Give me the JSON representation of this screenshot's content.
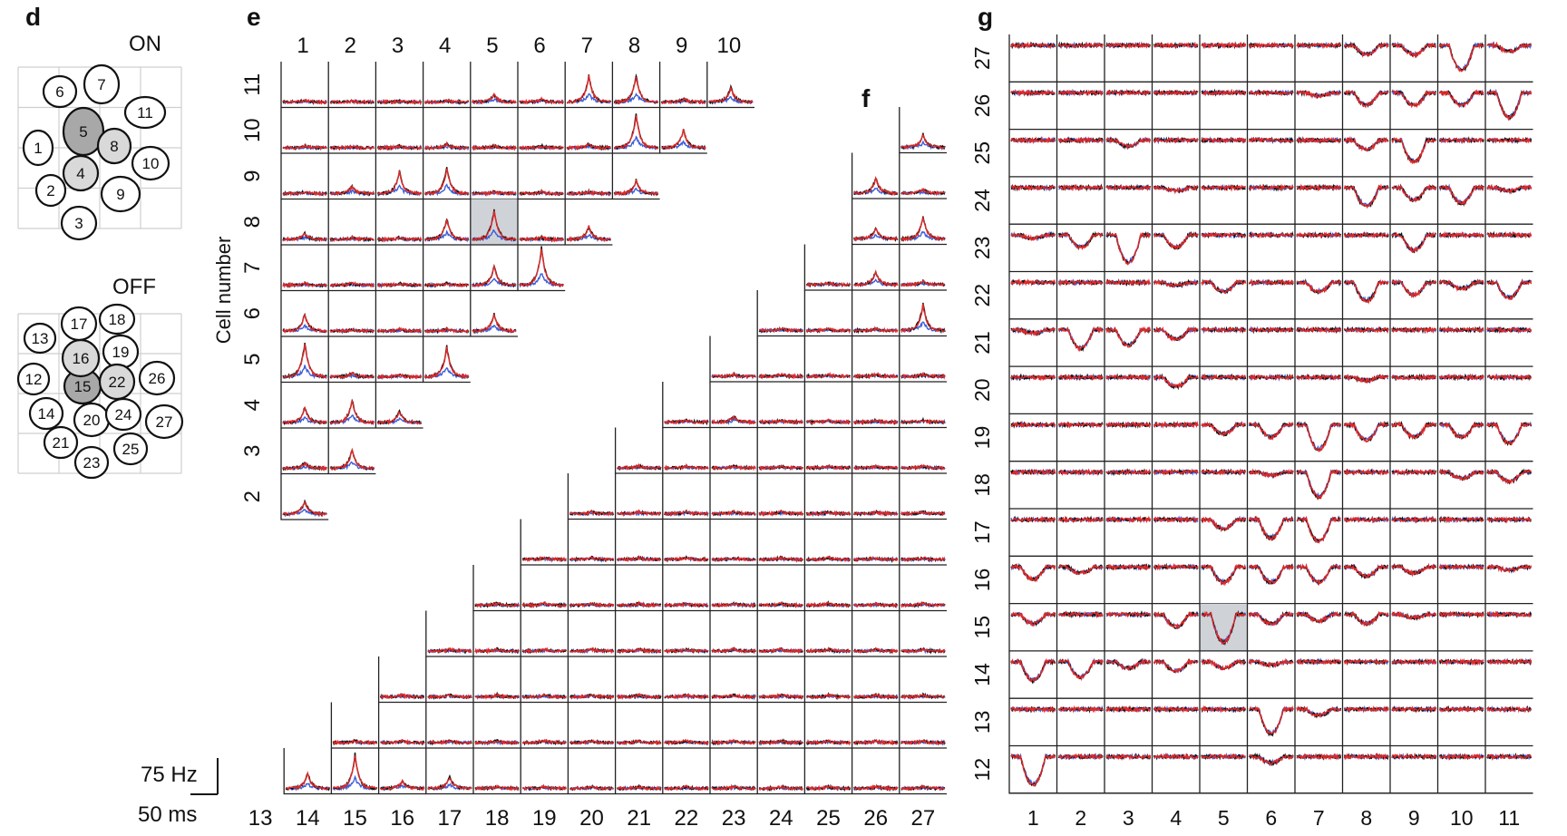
{
  "panels": {
    "d": "d",
    "e": "e",
    "f": "f",
    "g": "g"
  },
  "mosaic": {
    "on_label": "ON",
    "off_label": "OFF",
    "on_cells": [
      {
        "id": "1",
        "shade": "none"
      },
      {
        "id": "2",
        "shade": "none"
      },
      {
        "id": "3",
        "shade": "none"
      },
      {
        "id": "4",
        "shade": "light"
      },
      {
        "id": "5",
        "shade": "dark"
      },
      {
        "id": "6",
        "shade": "none"
      },
      {
        "id": "7",
        "shade": "none"
      },
      {
        "id": "8",
        "shade": "light"
      },
      {
        "id": "9",
        "shade": "none"
      },
      {
        "id": "10",
        "shade": "none"
      },
      {
        "id": "11",
        "shade": "none"
      }
    ],
    "off_cells": [
      {
        "id": "12",
        "shade": "none"
      },
      {
        "id": "13",
        "shade": "none"
      },
      {
        "id": "14",
        "shade": "none"
      },
      {
        "id": "15",
        "shade": "dark"
      },
      {
        "id": "16",
        "shade": "light"
      },
      {
        "id": "17",
        "shade": "none"
      },
      {
        "id": "18",
        "shade": "none"
      },
      {
        "id": "19",
        "shade": "none"
      },
      {
        "id": "20",
        "shade": "none"
      },
      {
        "id": "21",
        "shade": "none"
      },
      {
        "id": "22",
        "shade": "light"
      },
      {
        "id": "23",
        "shade": "none"
      },
      {
        "id": "24",
        "shade": "none"
      },
      {
        "id": "25",
        "shade": "none"
      },
      {
        "id": "26",
        "shade": "none"
      },
      {
        "id": "27",
        "shade": "none"
      }
    ]
  },
  "chart_data": [
    {
      "type": "heatmap",
      "panel": "e",
      "description_kind": "cross-correlogram grid, ON-ON pairs",
      "ylabel": "Cell number",
      "col_labels": [
        "1",
        "2",
        "3",
        "4",
        "5",
        "6",
        "7",
        "8",
        "9",
        "10"
      ],
      "row_labels": [
        "11",
        "10",
        "9",
        "8",
        "7",
        "6",
        "5",
        "4",
        "3",
        "2"
      ],
      "highlighted_pair": [
        "8",
        "5"
      ],
      "peak_amplitudes_rows": [
        [
          0.05,
          0.02,
          0.02,
          0.03,
          0.2,
          0.08,
          0.7,
          0.7,
          0.08,
          0.4
        ],
        [
          0.05,
          0.03,
          0.05,
          0.1,
          0.05,
          0.05,
          0.1,
          0.9,
          0.5
        ],
        [
          0.05,
          0.2,
          0.6,
          0.7,
          0.05,
          0.05,
          0.05,
          0.35
        ],
        [
          0.15,
          0.05,
          0.05,
          0.55,
          0.8,
          0.05,
          0.35
        ],
        [
          0.05,
          0.05,
          0.05,
          0.05,
          0.5,
          1.0
        ],
        [
          0.45,
          0.05,
          0.05,
          0.05,
          0.45
        ],
        [
          0.9,
          0.1,
          0.05,
          0.8
        ],
        [
          0.4,
          0.6,
          0.3
        ],
        [
          0.15,
          0.5
        ],
        [
          0.35
        ]
      ]
    },
    {
      "type": "heatmap",
      "panel": "f",
      "description_kind": "cross-correlogram grid, OFF-OFF pairs",
      "col_labels": [
        "13",
        "14",
        "15",
        "16",
        "17",
        "18",
        "19",
        "20",
        "21",
        "22",
        "23",
        "24",
        "25",
        "26",
        "27"
      ],
      "highlighted_pair": [
        "15",
        "16"
      ],
      "scale_bar_y": "75 Hz",
      "scale_bar_x": "50 ms",
      "peak_amplitudes_rows": [
        [
          0.35
        ],
        [
          0.4,
          0.1
        ],
        [
          0.3,
          0.6
        ],
        [
          0.05,
          0.35,
          0.1
        ],
        [
          0.05,
          0.05,
          0.05,
          0.7
        ],
        [
          0.05,
          0.05,
          0.05,
          0.05,
          0.05
        ],
        [
          0.05,
          0.15,
          0.05,
          0.05,
          0.05,
          0.05
        ],
        [
          0.05,
          0.05,
          0.05,
          0.05,
          0.05,
          0.05,
          0.05
        ],
        [
          0.05,
          0.05,
          0.05,
          0.05,
          0.05,
          0.05,
          0.05,
          0.05
        ],
        [
          0.05,
          0.05,
          0.05,
          0.05,
          0.05,
          0.05,
          0.05,
          0.05,
          0.05
        ],
        [
          0.05,
          0.05,
          0.05,
          0.05,
          0.05,
          0.05,
          0.05,
          0.05,
          0.05,
          0.05
        ],
        [
          0.05,
          0.05,
          0.05,
          0.05,
          0.05,
          0.05,
          0.05,
          0.05,
          0.05,
          0.05,
          0.05
        ],
        [
          0.05,
          0.05,
          0.05,
          0.05,
          0.05,
          0.05,
          0.05,
          0.05,
          0.05,
          0.05,
          0.05,
          0.05
        ],
        [
          0.05,
          0.05,
          0.05,
          0.05,
          0.05,
          0.05,
          0.05,
          0.05,
          0.05,
          0.05,
          0.05,
          0.05,
          0.05
        ],
        [
          0.4,
          0.9,
          0.2,
          0.3,
          0.05,
          0.05,
          0.05,
          0.05,
          0.05,
          0.05,
          0.05,
          0.05,
          0.05,
          0.05
        ]
      ]
    },
    {
      "type": "heatmap",
      "panel": "g",
      "description_kind": "cross-correlogram grid, ON-OFF pairs",
      "col_labels": [
        "1",
        "2",
        "3",
        "4",
        "5",
        "6",
        "7",
        "8",
        "9",
        "10",
        "11"
      ],
      "row_labels": [
        "27",
        "26",
        "25",
        "24",
        "23",
        "22",
        "21",
        "20",
        "19",
        "18",
        "17",
        "16",
        "15",
        "14",
        "13",
        "12"
      ],
      "highlighted_pair": [
        "15",
        "5"
      ],
      "trough_depths_rows": [
        [
          0,
          0,
          0,
          0,
          0,
          0,
          0,
          0.3,
          0.3,
          0.8,
          0.2
        ],
        [
          0,
          0,
          0,
          0,
          0,
          0,
          0.1,
          0.4,
          0.4,
          0.4,
          0.8
        ],
        [
          0,
          0,
          0.2,
          0,
          0,
          0,
          0,
          0.3,
          0.7,
          0,
          0
        ],
        [
          0,
          0,
          0,
          0.1,
          0,
          0,
          0,
          0.6,
          0.4,
          0.5,
          0.1
        ],
        [
          0.1,
          0.4,
          0.9,
          0.4,
          0,
          0,
          0,
          0,
          0.5,
          0,
          0
        ],
        [
          0,
          0,
          0,
          0.1,
          0.3,
          0,
          0.3,
          0.6,
          0.4,
          0.2,
          0.5
        ],
        [
          0.1,
          0.6,
          0.5,
          0.3,
          0,
          0,
          0,
          0,
          0,
          0,
          0
        ],
        [
          0,
          0,
          0,
          0.3,
          0,
          0,
          0,
          0.1,
          0,
          0,
          0
        ],
        [
          0,
          0,
          0,
          0,
          0.3,
          0.4,
          0.8,
          0.5,
          0.4,
          0.4,
          0.6
        ],
        [
          0,
          0,
          0,
          0,
          0,
          0.1,
          0.8,
          0,
          0,
          0.2,
          0.3
        ],
        [
          0,
          0,
          0,
          0,
          0.3,
          0.6,
          0.7,
          0,
          0,
          0,
          0
        ],
        [
          0.4,
          0.2,
          0,
          0,
          0.5,
          0.5,
          0.5,
          0.3,
          0.2,
          0,
          0.1
        ],
        [
          0.3,
          0,
          0,
          0.4,
          0.9,
          0.3,
          0.2,
          0.3,
          0.1,
          0,
          0
        ],
        [
          0.6,
          0.5,
          0.2,
          0.3,
          0.2,
          0.1,
          0,
          0,
          0,
          0,
          0
        ],
        [
          0,
          0,
          0,
          0,
          0,
          0.8,
          0.2,
          0,
          0,
          0,
          0
        ],
        [
          0.9,
          0,
          0,
          0,
          0,
          0.2,
          0,
          0,
          0,
          0,
          0
        ]
      ]
    }
  ]
}
